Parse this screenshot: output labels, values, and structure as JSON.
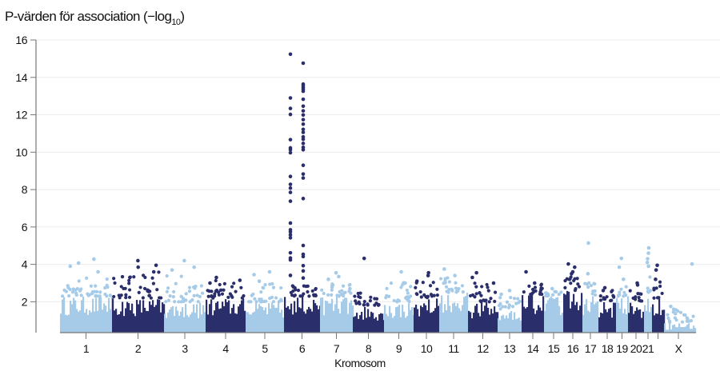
{
  "chart_data": {
    "type": "scatter",
    "subtype": "manhattan",
    "title": "P-värden för association (−log",
    "title_subscript": "10",
    "title_close": ")",
    "xlabel": "Kromosom",
    "ylabel": "",
    "ylim": [
      0.35,
      16
    ],
    "yticks": [
      2,
      4,
      6,
      8,
      10,
      12,
      14,
      16
    ],
    "grid": "horizontal",
    "colors": {
      "odd": "#a5cbe8",
      "even": "#2a2e6a",
      "grid": "#ececec",
      "axis": "#777777"
    },
    "chromosomes": [
      {
        "label": "1",
        "bulk_max": 2.3,
        "scatter_max": 3.3,
        "peaks": [
          4.28,
          4.07,
          3.9,
          3.6
        ]
      },
      {
        "label": "2",
        "bulk_max": 2.2,
        "scatter_max": 3.6,
        "peaks": [
          4.2,
          3.95,
          3.85,
          3.6,
          3.3
        ]
      },
      {
        "label": "3",
        "bulk_max": 2.0,
        "scatter_max": 3.4,
        "peaks": [
          4.2,
          3.85,
          3.7
        ]
      },
      {
        "label": "4",
        "bulk_max": 2.2,
        "scatter_max": 3.2,
        "peaks": [
          3.3,
          3.15,
          3.0
        ]
      },
      {
        "label": "5",
        "bulk_max": 2.0,
        "scatter_max": 3.0,
        "peaks": [
          3.6,
          3.45,
          3.1
        ]
      },
      {
        "label": "6",
        "bulk_max": 2.3,
        "scatter_max": 2.9,
        "peaks": [
          15.24,
          12.9,
          12.34,
          12.02,
          10.67,
          10.23,
          10.13,
          9.97,
          8.7,
          8.28,
          8.08,
          7.85,
          7.38,
          6.21,
          5.85,
          5.74,
          5.58,
          5.42,
          4.62,
          4.34,
          4.24,
          3.41,
          14.76,
          13.64,
          13.55,
          13.45,
          13.36,
          13.26,
          12.83,
          12.46,
          12.21,
          11.99,
          11.74,
          11.5,
          11.22,
          11.06,
          10.82,
          10.69,
          10.47,
          10.26,
          10.13,
          9.3,
          8.83,
          8.62,
          7.52,
          5.01,
          4.54,
          4.42,
          3.93,
          3.65,
          3.27
        ]
      },
      {
        "label": "7",
        "bulk_max": 2.3,
        "scatter_max": 3.0,
        "peaks": [
          3.55,
          3.35,
          3.2
        ]
      },
      {
        "label": "8",
        "bulk_max": 1.8,
        "scatter_max": 2.5,
        "peaks": [
          4.32
        ]
      },
      {
        "label": "9",
        "bulk_max": 2.0,
        "scatter_max": 3.2,
        "peaks": [
          3.6,
          3.0
        ]
      },
      {
        "label": "10",
        "bulk_max": 2.2,
        "scatter_max": 3.2,
        "peaks": [
          3.55,
          3.4,
          3.1
        ]
      },
      {
        "label": "11",
        "bulk_max": 2.5,
        "scatter_max": 3.3,
        "peaks": [
          3.75,
          3.4
        ]
      },
      {
        "label": "12",
        "bulk_max": 2.0,
        "scatter_max": 3.2,
        "peaks": [
          3.55,
          3.3,
          3.0
        ]
      },
      {
        "label": "13",
        "bulk_max": 1.6,
        "scatter_max": 2.3,
        "peaks": [
          2.6,
          2.4
        ]
      },
      {
        "label": "14",
        "bulk_max": 2.4,
        "scatter_max": 3.0,
        "peaks": [
          3.6,
          3.0
        ]
      },
      {
        "label": "15",
        "bulk_max": 2.3,
        "scatter_max": 2.6,
        "peaks": [
          2.7
        ]
      },
      {
        "label": "16",
        "bulk_max": 2.6,
        "scatter_max": 3.4,
        "peaks": [
          4.02,
          3.85,
          3.6,
          3.5
        ]
      },
      {
        "label": "17",
        "bulk_max": 2.3,
        "scatter_max": 3.2,
        "peaks": [
          5.14,
          3.5
        ]
      },
      {
        "label": "18",
        "bulk_max": 2.0,
        "scatter_max": 2.7,
        "peaks": [
          2.75,
          2.6
        ]
      },
      {
        "label": "19",
        "bulk_max": 2.3,
        "scatter_max": 3.0,
        "peaks": [
          4.32,
          3.85,
          3.2
        ]
      },
      {
        "label": "20",
        "bulk_max": 2.0,
        "scatter_max": 2.8,
        "peaks": [
          3.0,
          2.9
        ]
      },
      {
        "label": "21",
        "bulk_max": 2.5,
        "scatter_max": 3.6,
        "peaks": [
          4.88,
          4.6,
          4.3,
          4.1,
          3.9
        ]
      },
      {
        "label": "",
        "bulk_max": 2.2,
        "scatter_max": 3.3,
        "peaks": [
          3.95,
          3.7,
          3.2
        ]
      },
      {
        "label": "X",
        "bulk_max": 0.9,
        "scatter_max": 1.7,
        "peaks": [
          4.02,
          1.75
        ]
      }
    ]
  }
}
